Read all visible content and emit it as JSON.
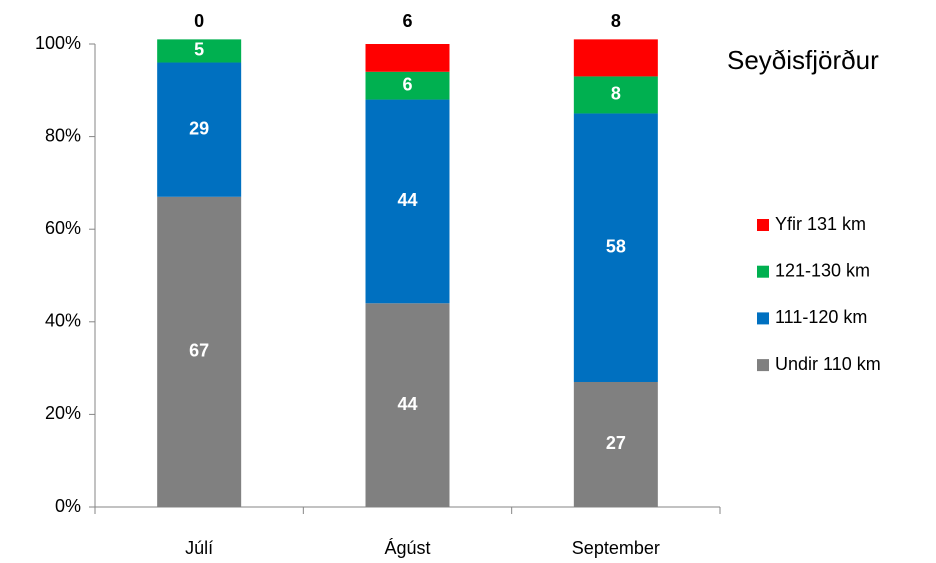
{
  "chart_data": {
    "type": "stacked_bar",
    "title": "Seyðisfjörður",
    "categories": [
      "Júlí",
      "Ágúst",
      "September"
    ],
    "series": [
      {
        "name": "Undir 110 km",
        "color": "#808080",
        "values": [
          67,
          44,
          27
        ]
      },
      {
        "name": "111-120 km",
        "color": "#0070c0",
        "values": [
          29,
          44,
          58
        ]
      },
      {
        "name": "121-130 km",
        "color": "#00b050",
        "values": [
          5,
          6,
          8
        ]
      },
      {
        "name": "Yfir 131 km",
        "color": "#ff0000",
        "values": [
          0,
          6,
          8
        ]
      }
    ],
    "ylim": [
      0,
      100
    ],
    "yticks": [
      {
        "value": 0,
        "label": "0%"
      },
      {
        "value": 20,
        "label": "20%"
      },
      {
        "value": 40,
        "label": "40%"
      },
      {
        "value": 60,
        "label": "60%"
      },
      {
        "value": 80,
        "label": "80%"
      },
      {
        "value": 100,
        "label": "100%"
      }
    ],
    "legend": "right"
  }
}
